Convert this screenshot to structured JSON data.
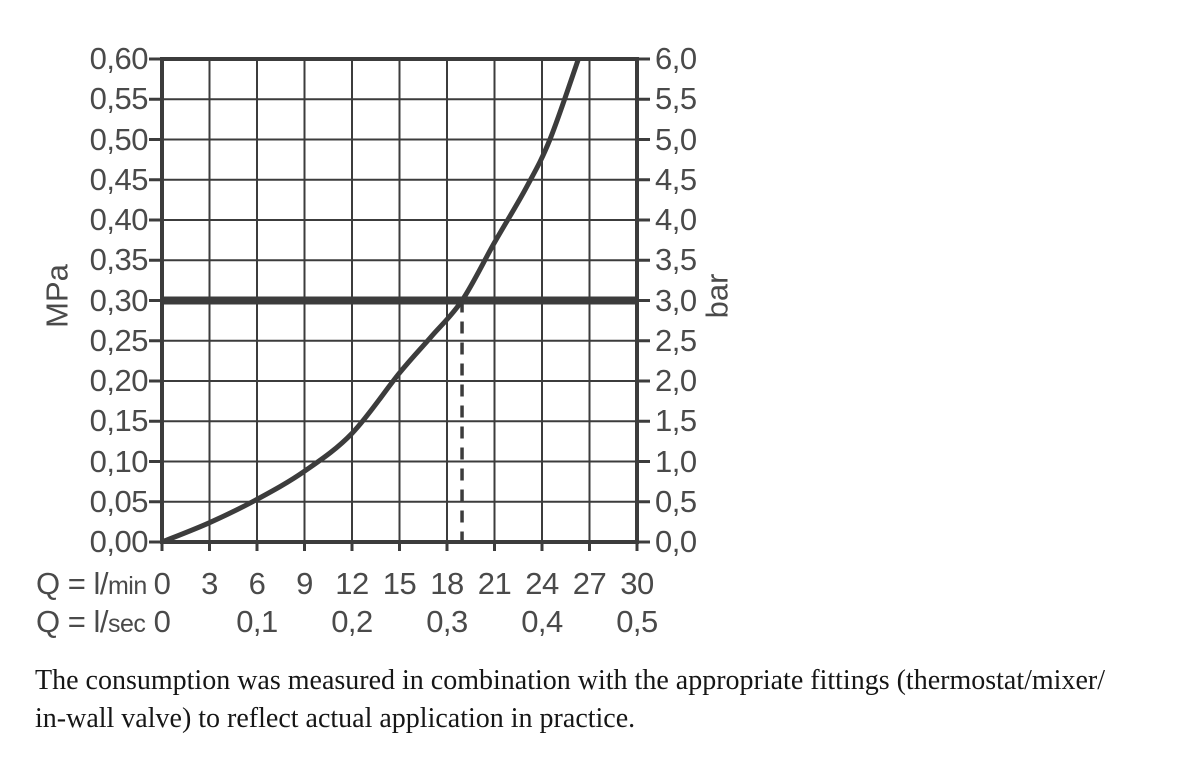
{
  "colors": {
    "line": "#3c3c3c",
    "label_text": "#4a4a4a",
    "caption_text": "#161616",
    "background": "#ffffff"
  },
  "chart_data": {
    "type": "line",
    "grid": true,
    "legend": false,
    "x_axis": {
      "range": [
        0,
        30
      ],
      "rows": [
        {
          "name": "l/min",
          "label_prefix": "Q = l/",
          "label_unit": "min",
          "ticks": [
            {
              "q": 0,
              "text": "0"
            },
            {
              "q": 3,
              "text": "3"
            },
            {
              "q": 6,
              "text": "6"
            },
            {
              "q": 9,
              "text": "9"
            },
            {
              "q": 12,
              "text": "12"
            },
            {
              "q": 15,
              "text": "15"
            },
            {
              "q": 18,
              "text": "18"
            },
            {
              "q": 21,
              "text": "21"
            },
            {
              "q": 24,
              "text": "24"
            },
            {
              "q": 27,
              "text": "27"
            },
            {
              "q": 30,
              "text": "30"
            }
          ]
        },
        {
          "name": "l/sec",
          "label_prefix": "Q = l/",
          "label_unit": "sec",
          "ticks": [
            {
              "q": 0,
              "text": "0"
            },
            {
              "q": 6,
              "text": "0,1"
            },
            {
              "q": 12,
              "text": "0,2"
            },
            {
              "q": 18,
              "text": "0,3"
            },
            {
              "q": 24,
              "text": "0,4"
            },
            {
              "q": 30,
              "text": "0,5"
            }
          ]
        }
      ]
    },
    "y_axis_left": {
      "label": "MPa",
      "range": [
        0,
        0.6
      ],
      "ticks": [
        {
          "v": 0.6,
          "text": "0,60"
        },
        {
          "v": 0.55,
          "text": "0,55"
        },
        {
          "v": 0.5,
          "text": "0,50"
        },
        {
          "v": 0.45,
          "text": "0,45"
        },
        {
          "v": 0.4,
          "text": "0,40"
        },
        {
          "v": 0.35,
          "text": "0,35"
        },
        {
          "v": 0.3,
          "text": "0,30"
        },
        {
          "v": 0.25,
          "text": "0,25"
        },
        {
          "v": 0.2,
          "text": "0,20"
        },
        {
          "v": 0.15,
          "text": "0,15"
        },
        {
          "v": 0.1,
          "text": "0,10"
        },
        {
          "v": 0.05,
          "text": "0,05"
        },
        {
          "v": 0.0,
          "text": "0,00"
        }
      ]
    },
    "y_axis_right": {
      "label": "bar",
      "range": [
        0,
        6
      ],
      "ticks": [
        {
          "v": 6.0,
          "text": "6,0"
        },
        {
          "v": 5.5,
          "text": "5,5"
        },
        {
          "v": 5.0,
          "text": "5,0"
        },
        {
          "v": 4.5,
          "text": "4,5"
        },
        {
          "v": 4.0,
          "text": "4,0"
        },
        {
          "v": 3.5,
          "text": "3,5"
        },
        {
          "v": 3.0,
          "text": "3,0"
        },
        {
          "v": 2.5,
          "text": "2,5"
        },
        {
          "v": 2.0,
          "text": "2,0"
        },
        {
          "v": 1.5,
          "text": "1,5"
        },
        {
          "v": 1.0,
          "text": "1,0"
        },
        {
          "v": 0.5,
          "text": "0,5"
        },
        {
          "v": 0.0,
          "text": "0,0"
        }
      ]
    },
    "series": [
      {
        "name": "flow-vs-pressure-curve",
        "points_q_lmin_mpa": [
          [
            0,
            0
          ],
          [
            3,
            0.024
          ],
          [
            6,
            0.053
          ],
          [
            9,
            0.088
          ],
          [
            12,
            0.135
          ],
          [
            15,
            0.21
          ],
          [
            17,
            0.255
          ],
          [
            18.95,
            0.3
          ],
          [
            21,
            0.372
          ],
          [
            23,
            0.44
          ],
          [
            24.5,
            0.5
          ],
          [
            26.3,
            0.6
          ]
        ]
      }
    ],
    "reference_line": {
      "mpa": 0.3,
      "bar": 3.0
    },
    "dashed_marker": {
      "q_lmin": 18.95,
      "from_mpa": 0.3,
      "to_mpa": 0.0
    }
  },
  "caption": {
    "line1": "The consumption was measured in combination with the appropriate fittings (thermostat/mixer/",
    "line2": "in-wall valve) to reflect actual application in practice."
  }
}
